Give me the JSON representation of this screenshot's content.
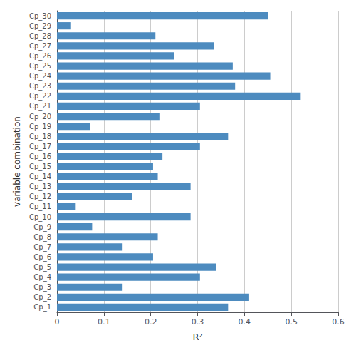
{
  "chart_data": {
    "type": "bar",
    "orientation": "horizontal",
    "categories": [
      "Cp_30",
      "Cp_29",
      "Cp_28",
      "Cp_27",
      "Cp_26",
      "Cp_25",
      "Cp_24",
      "Cp_23",
      "Cp_22",
      "Cp_21",
      "Cp_20",
      "Cp_19",
      "Cp_18",
      "Cp_17",
      "Cp_16",
      "Cp_15",
      "Cp_14",
      "Cp_13",
      "Cp_12",
      "Cp_11",
      "Cp_10",
      "Cp_9",
      "Cp_8",
      "Cp_7",
      "Cp_6",
      "Cp_5",
      "Cp_4",
      "Cp_3",
      "Cp_2",
      "Cp_1"
    ],
    "values": [
      0.45,
      0.03,
      0.21,
      0.335,
      0.25,
      0.375,
      0.455,
      0.38,
      0.52,
      0.305,
      0.22,
      0.07,
      0.365,
      0.305,
      0.225,
      0.205,
      0.215,
      0.285,
      0.16,
      0.04,
      0.285,
      0.075,
      0.215,
      0.14,
      0.205,
      0.34,
      0.305,
      0.14,
      0.41,
      0.365
    ],
    "color": "#4d8bbf",
    "xlabel": "R²",
    "ylabel": "variable combination",
    "xlim": [
      0,
      0.6
    ],
    "xticks": [
      0,
      0.1,
      0.2,
      0.3,
      0.4,
      0.5,
      0.6
    ],
    "grid": true
  }
}
